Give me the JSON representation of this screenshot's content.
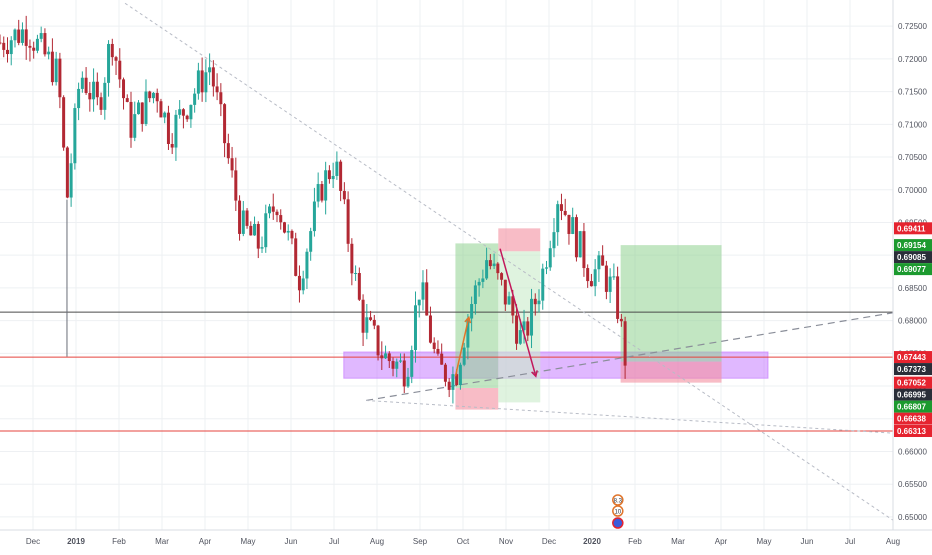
{
  "chart_data": {
    "type": "candlestick",
    "instrument_note": "",
    "colors": {
      "up": "#26a69a",
      "down": "#b22833",
      "background": "#ffffff",
      "grid": "#eef0f3",
      "axis_text": "#50535e",
      "horizontal_line": "#e5433d",
      "long_target_zone": "#8fd18f",
      "stop_zone": "#f48fa0",
      "support_zone": "#c77dff",
      "price_label_red": "#e5232f",
      "price_label_green": "#1c9a2f",
      "price_label_dark": "#2a2e39"
    },
    "ylim": [
      0.648,
      0.729
    ],
    "grid": true,
    "x_axis": {
      "ticks": [
        "Dec",
        "2019",
        "Feb",
        "Mar",
        "Apr",
        "May",
        "Jun",
        "Jul",
        "Aug",
        "Sep",
        "Oct",
        "Nov",
        "Dec",
        "2020",
        "Feb",
        "Mar",
        "Apr",
        "May",
        "Jun",
        "Jul",
        "Aug"
      ],
      "bold_ticks": [
        "2019",
        "2020"
      ]
    },
    "y_axis": {
      "ticks": [
        "0.72500",
        "0.72000",
        "0.71500",
        "0.71000",
        "0.70500",
        "0.70000",
        "0.69500",
        "0.69000",
        "0.68500",
        "0.68000",
        "0.67500",
        "0.67000",
        "0.66500",
        "0.66000",
        "0.65500",
        "0.65000"
      ],
      "tick_values": [
        0.725,
        0.72,
        0.715,
        0.71,
        0.705,
        0.7,
        0.695,
        0.69,
        0.685,
        0.68,
        0.675,
        0.67,
        0.665,
        0.66,
        0.655,
        0.65
      ]
    },
    "price_labels": [
      {
        "text": "0.69411",
        "value": 0.69411,
        "style": "red"
      },
      {
        "text": "0.69154",
        "value": 0.69154,
        "style": "green"
      },
      {
        "text": "0.69085",
        "value": 0.69085,
        "style": "dark"
      },
      {
        "text": "0.69077",
        "value": 0.69077,
        "style": "green"
      },
      {
        "text": "0.67443",
        "value": 0.67443,
        "style": "red"
      },
      {
        "text": "0.67373",
        "value": 0.67373,
        "style": "dark"
      },
      {
        "text": "0.67052",
        "value": 0.67052,
        "style": "red"
      },
      {
        "text": "0.66995",
        "value": 0.66995,
        "style": "dark"
      },
      {
        "text": "0.66807",
        "value": 0.66807,
        "style": "green"
      },
      {
        "text": "0.66638",
        "value": 0.66638,
        "style": "red"
      },
      {
        "text": "0.66313",
        "value": 0.66313,
        "style": "red"
      }
    ],
    "horizontal_lines": [
      {
        "value": 0.67443,
        "color": "#e5433d"
      },
      {
        "value": 0.66313,
        "color": "#e5433d"
      },
      {
        "value": 0.6813,
        "color": "#4a4a4a"
      }
    ],
    "anchors": [
      {
        "t": 0,
        "p": 0.7225
      },
      {
        "t": 0.03,
        "p": 0.7245
      },
      {
        "t": 0.065,
        "p": 0.7175
      },
      {
        "t": 0.075,
        "p": 0.6985
      },
      {
        "t": 0.09,
        "p": 0.718
      },
      {
        "t": 0.11,
        "p": 0.7125
      },
      {
        "t": 0.125,
        "p": 0.7235
      },
      {
        "t": 0.145,
        "p": 0.7095
      },
      {
        "t": 0.175,
        "p": 0.7155
      },
      {
        "t": 0.19,
        "p": 0.7085
      },
      {
        "t": 0.235,
        "p": 0.719
      },
      {
        "t": 0.27,
        "p": 0.6945
      },
      {
        "t": 0.29,
        "p": 0.6915
      },
      {
        "t": 0.31,
        "p": 0.6985
      },
      {
        "t": 0.335,
        "p": 0.6865
      },
      {
        "t": 0.36,
        "p": 0.7005
      },
      {
        "t": 0.375,
        "p": 0.7045
      },
      {
        "t": 0.405,
        "p": 0.6805
      },
      {
        "t": 0.43,
        "p": 0.6745
      },
      {
        "t": 0.455,
        "p": 0.6725
      },
      {
        "t": 0.47,
        "p": 0.6855
      },
      {
        "t": 0.49,
        "p": 0.6725
      },
      {
        "t": 0.51,
        "p": 0.6715
      },
      {
        "t": 0.525,
        "p": 0.6815
      },
      {
        "t": 0.545,
        "p": 0.6895
      },
      {
        "t": 0.57,
        "p": 0.6825
      },
      {
        "t": 0.585,
        "p": 0.6765
      },
      {
        "t": 0.605,
        "p": 0.6855
      },
      {
        "t": 0.625,
        "p": 0.6995
      },
      {
        "t": 0.645,
        "p": 0.6925
      },
      {
        "t": 0.66,
        "p": 0.6875
      },
      {
        "t": 0.675,
        "p": 0.6875
      },
      {
        "t": 0.69,
        "p": 0.6835
      },
      {
        "t": 0.7,
        "p": 0.6745
      }
    ],
    "points": {
      "low_aug": {
        "t": 0.41,
        "p": 0.6678
      },
      "trendline_end": {
        "t": 1.0,
        "p": 0.6812
      },
      "downtrend_start": {
        "t": 0.14,
        "p": 0.7285
      },
      "downtrend_end": {
        "t": 1.0,
        "p": 0.6495
      },
      "diag_low_start": {
        "t": 0.41,
        "p": 0.6678
      },
      "diag_low_end": {
        "t": 1.0,
        "p": 0.6628
      }
    },
    "zones": [
      {
        "kind": "support",
        "t0": 0.385,
        "t1": 0.86,
        "p0": 0.6712,
        "p1": 0.6752
      },
      {
        "kind": "target",
        "t0": 0.51,
        "t1": 0.558,
        "p0": 0.6697,
        "p1": 0.6918
      },
      {
        "kind": "stop",
        "t0": 0.51,
        "t1": 0.558,
        "p0": 0.6664,
        "p1": 0.6697
      },
      {
        "kind": "target_light",
        "t0": 0.558,
        "t1": 0.605,
        "p0": 0.6675,
        "p1": 0.6906
      },
      {
        "kind": "stop",
        "t0": 0.558,
        "t1": 0.605,
        "p0": 0.6906,
        "p1": 0.6941
      },
      {
        "kind": "target",
        "t0": 0.695,
        "t1": 0.808,
        "p0": 0.67373,
        "p1": 0.69154
      },
      {
        "kind": "stop",
        "t0": 0.695,
        "t1": 0.808,
        "p0": 0.67052,
        "p1": 0.67373
      }
    ],
    "arrows": [
      {
        "color": "#e0742a",
        "from": {
          "t": 0.51,
          "p": 0.6715
        },
        "to": {
          "t": 0.525,
          "p": 0.6805
        }
      },
      {
        "color": "#c2185b",
        "from": {
          "t": 0.56,
          "p": 0.691
        },
        "to": {
          "t": 0.6,
          "p": 0.6715
        }
      }
    ],
    "event_badges": [
      {
        "label": "8.3",
        "t": 0.684
      },
      {
        "label": "10",
        "t": 0.684
      }
    ]
  }
}
